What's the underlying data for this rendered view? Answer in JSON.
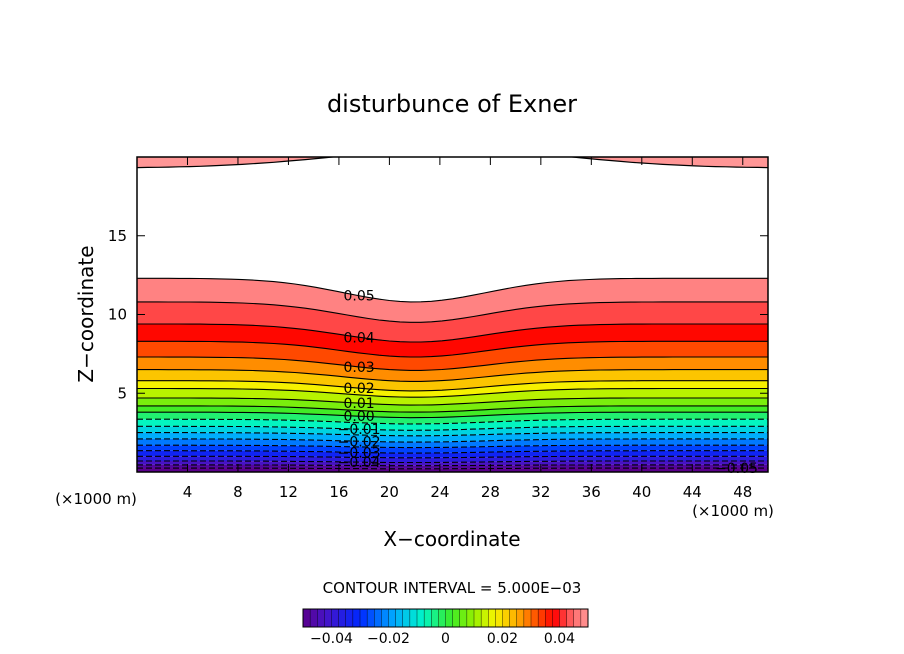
{
  "chart_data": {
    "type": "contour",
    "title": "disturbunce of Exner",
    "xlabel": "X−coordinate",
    "ylabel": "Z−coordinate",
    "x_unit_left": "(×1000 m)",
    "x_unit_right": "(×1000 m)",
    "xlim": [
      0,
      50
    ],
    "ylim": [
      0,
      20
    ],
    "x_ticks": [
      4,
      8,
      12,
      16,
      20,
      24,
      28,
      32,
      36,
      40,
      44,
      48
    ],
    "y_ticks": [
      5,
      10,
      15
    ],
    "contour_interval_text": "CONTOUR INTERVAL = 5.000E−03",
    "contour_interval": 0.005,
    "fill_range": [
      -0.05,
      0.05
    ],
    "top_band": {
      "value": 0.05,
      "edge_z": 19.3,
      "edge_z_center": 20.5,
      "center_x": 25,
      "width_x": 13
    },
    "contour_lines": [
      {
        "value": 0.05,
        "label": "0.05",
        "z_edge": 12.3,
        "dip": 1.5,
        "label_x": 17.6
      },
      {
        "value": 0.045,
        "label": "",
        "z_edge": 10.8,
        "dip": 1.3,
        "label_x": null
      },
      {
        "value": 0.04,
        "label": "0.04",
        "z_edge": 9.4,
        "dip": 1.15,
        "label_x": 17.6
      },
      {
        "value": 0.035,
        "label": "",
        "z_edge": 8.3,
        "dip": 1.0,
        "label_x": null
      },
      {
        "value": 0.03,
        "label": "0.03",
        "z_edge": 7.3,
        "dip": 0.85,
        "label_x": 17.6
      },
      {
        "value": 0.025,
        "label": "",
        "z_edge": 6.5,
        "dip": 0.75,
        "label_x": null
      },
      {
        "value": 0.02,
        "label": "0.02",
        "z_edge": 5.8,
        "dip": 0.65,
        "label_x": 17.6
      },
      {
        "value": 0.015,
        "label": "",
        "z_edge": 5.3,
        "dip": 0.55,
        "label_x": null
      },
      {
        "value": 0.01,
        "label": "0.01",
        "z_edge": 4.7,
        "dip": 0.45,
        "label_x": 17.6
      },
      {
        "value": 0.005,
        "label": "",
        "z_edge": 4.2,
        "dip": 0.4,
        "label_x": null
      },
      {
        "value": 0.0,
        "label": "0.00",
        "z_edge": 3.8,
        "dip": 0.35,
        "label_x": 17.6
      },
      {
        "value": -0.005,
        "label": "",
        "z_edge": 3.35,
        "dip": 0.3,
        "label_x": null
      },
      {
        "value": -0.01,
        "label": "−0.01",
        "z_edge": 2.9,
        "dip": 0.25,
        "label_x": 17.6
      },
      {
        "value": -0.015,
        "label": "",
        "z_edge": 2.5,
        "dip": 0.2,
        "label_x": null
      },
      {
        "value": -0.02,
        "label": "−0.02",
        "z_edge": 2.1,
        "dip": 0.2,
        "label_x": 17.6
      },
      {
        "value": -0.025,
        "label": "",
        "z_edge": 1.7,
        "dip": 0.15,
        "label_x": null
      },
      {
        "value": -0.03,
        "label": "−0.03",
        "z_edge": 1.35,
        "dip": 0.15,
        "label_x": 17.6
      },
      {
        "value": -0.035,
        "label": "",
        "z_edge": 1.0,
        "dip": 0.1,
        "label_x": null
      },
      {
        "value": -0.04,
        "label": "−0.04",
        "z_edge": 0.7,
        "dip": 0.1,
        "label_x": 17.6
      },
      {
        "value": -0.045,
        "label": "",
        "z_edge": 0.45,
        "dip": 0.05,
        "label_x": null
      },
      {
        "value": -0.05,
        "label": "−0.05",
        "z_edge": 0.25,
        "dip": 0.05,
        "label_x": 47.5
      }
    ],
    "dip_center_x": 22,
    "dip_width_x": 8,
    "colorbar": {
      "min": -0.05,
      "max": 0.05,
      "tick_values": [
        -0.04,
        -0.02,
        0,
        0.02,
        0.04
      ],
      "tick_labels": [
        "−0.04",
        "−0.02",
        "0",
        "0.02",
        "0.04"
      ]
    }
  }
}
